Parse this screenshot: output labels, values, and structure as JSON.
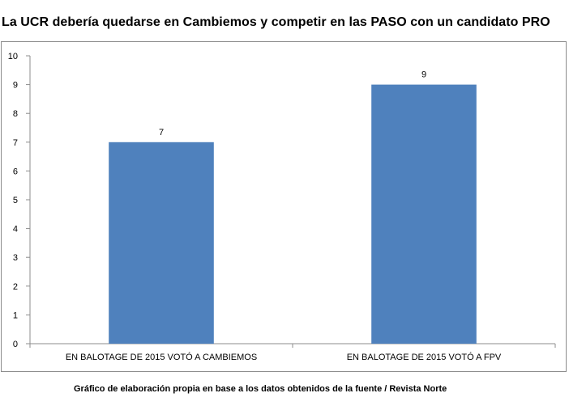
{
  "title": "La UCR debería quedarse en Cambiemos y competir en las PASO con un candidato PRO",
  "source_note": "Gráfico de elaboración propia en base a los datos obtenidos de la fuente / Revista Norte",
  "chart_data": {
    "type": "bar",
    "categories": [
      "EN BALOTAGE DE 2015 VOTÓ A CAMBIEMOS",
      "EN BALOTAGE DE 2015 VOTÓ A FPV"
    ],
    "values": [
      7,
      9
    ],
    "data_labels": [
      "7",
      "9"
    ],
    "title": "La UCR debería quedarse en Cambiemos y competir en las PASO con un candidato PRO",
    "xlabel": "",
    "ylabel": "",
    "ylim": [
      0,
      10
    ],
    "yticks": [
      0,
      1,
      2,
      3,
      4,
      5,
      6,
      7,
      8,
      9,
      10
    ],
    "grid": false,
    "legend": "none",
    "bar_color": "#4f81bd"
  }
}
